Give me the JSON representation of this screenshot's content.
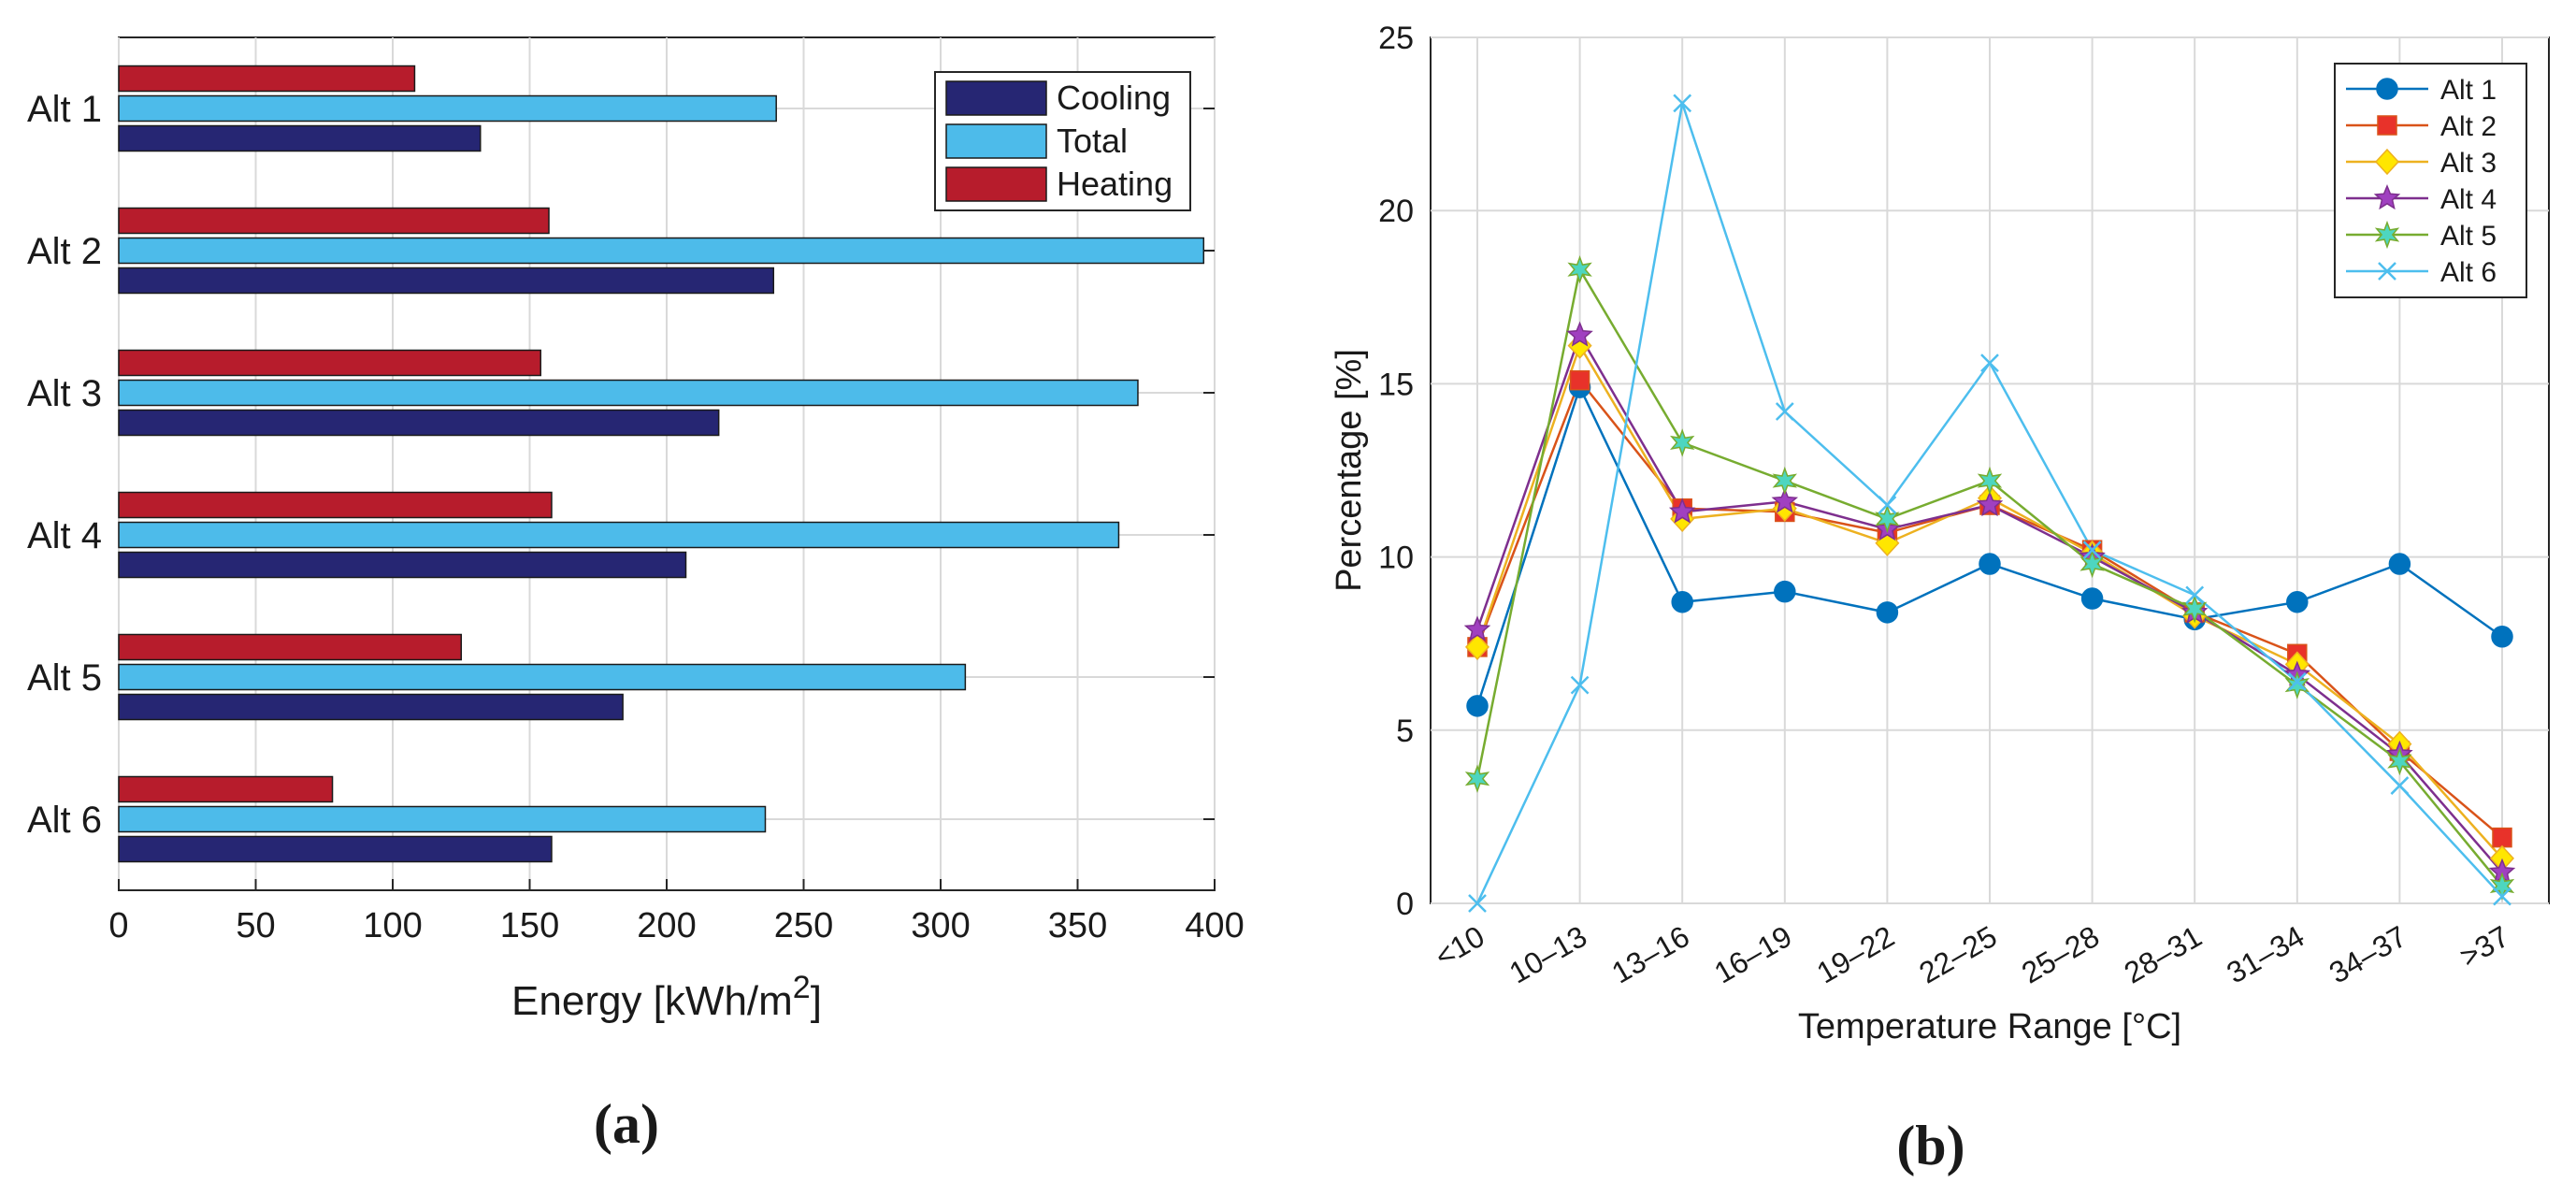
{
  "chart_data": [
    {
      "type": "bar",
      "orientation": "horizontal",
      "panel_label": "(a)",
      "categories": [
        "Alt 1",
        "Alt 2",
        "Alt 3",
        "Alt 4",
        "Alt 5",
        "Alt 6"
      ],
      "series": [
        {
          "name": "Heating",
          "color": "#b71c2c",
          "values": [
            108,
            157,
            154,
            158,
            125,
            78
          ]
        },
        {
          "name": "Total",
          "color": "#4dbbea",
          "values": [
            240,
            396,
            372,
            365,
            309,
            236
          ]
        },
        {
          "name": "Cooling",
          "color": "#262673",
          "values": [
            132,
            239,
            219,
            207,
            184,
            158
          ]
        }
      ],
      "legend": [
        "Cooling",
        "Total",
        "Heating"
      ],
      "legend_position": "top-right",
      "xlabel": "Energy [kWh/m",
      "xlabel_sup": "2",
      "xlabel_suffix": "]",
      "xlim": [
        0,
        400
      ],
      "xticks": [
        "0",
        "50",
        "100",
        "150",
        "200",
        "250",
        "300",
        "350",
        "400"
      ],
      "grid": true
    },
    {
      "type": "line",
      "panel_label": "(b)",
      "categories": [
        "<10",
        "10–13",
        "13–16",
        "16–19",
        "19–22",
        "22–25",
        "25–28",
        "28–31",
        "31–34",
        "34–37",
        ">37"
      ],
      "series": [
        {
          "name": "Alt 1",
          "color": "#0072bd",
          "marker": "circle",
          "values": [
            5.7,
            14.9,
            8.7,
            9.0,
            8.4,
            9.8,
            8.8,
            8.2,
            8.7,
            9.8,
            7.7
          ]
        },
        {
          "name": "Alt 2",
          "color": "#d95319",
          "marker": "square",
          "values": [
            7.4,
            15.1,
            11.4,
            11.3,
            10.7,
            11.5,
            10.2,
            8.4,
            7.2,
            4.4,
            1.9
          ]
        },
        {
          "name": "Alt 3",
          "color": "#edb120",
          "marker": "diamond",
          "values": [
            7.4,
            16.1,
            11.1,
            11.4,
            10.4,
            11.7,
            10.1,
            8.3,
            6.9,
            4.6,
            1.3
          ]
        },
        {
          "name": "Alt 4",
          "color": "#7e2f8e",
          "marker": "star",
          "values": [
            7.9,
            16.4,
            11.3,
            11.6,
            10.8,
            11.5,
            10.0,
            8.4,
            6.6,
            4.3,
            0.9
          ]
        },
        {
          "name": "Alt 5",
          "color": "#77ac30",
          "marker": "hexagram",
          "values": [
            3.6,
            18.3,
            13.3,
            12.2,
            11.1,
            12.2,
            9.8,
            8.5,
            6.3,
            4.1,
            0.5
          ]
        },
        {
          "name": "Alt 6",
          "color": "#4dbeee",
          "marker": "x",
          "values": [
            0.0,
            6.3,
            23.1,
            14.2,
            11.5,
            15.6,
            10.2,
            8.9,
            6.4,
            3.4,
            0.2
          ]
        }
      ],
      "legend_position": "top-right",
      "xlabel": "Temperature Range [°C]",
      "ylabel": "Percentage [%]",
      "ylim": [
        0,
        25
      ],
      "yticks": [
        "0",
        "5",
        "10",
        "15",
        "20",
        "25"
      ],
      "grid": true
    }
  ]
}
